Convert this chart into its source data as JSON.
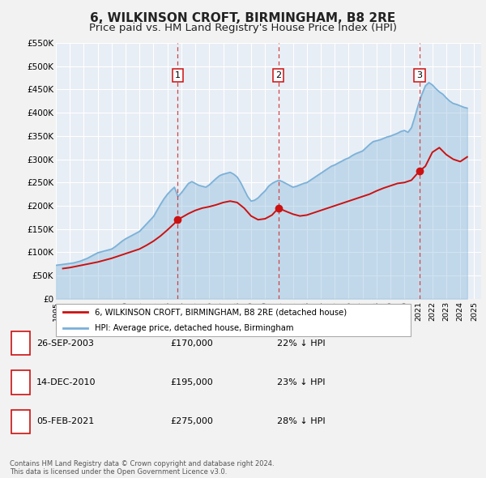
{
  "title": "6, WILKINSON CROFT, BIRMINGHAM, B8 2RE",
  "subtitle": "Price paid vs. HM Land Registry's House Price Index (HPI)",
  "title_fontsize": 11,
  "subtitle_fontsize": 9.5,
  "ylim": [
    0,
    550000
  ],
  "yticks": [
    0,
    50000,
    100000,
    150000,
    200000,
    250000,
    300000,
    350000,
    400000,
    450000,
    500000,
    550000
  ],
  "ytick_labels": [
    "£0",
    "£50K",
    "£100K",
    "£150K",
    "£200K",
    "£250K",
    "£300K",
    "£350K",
    "£400K",
    "£450K",
    "£500K",
    "£550K"
  ],
  "xlim_start": 1995.0,
  "xlim_end": 2025.5,
  "background_color": "#f2f2f2",
  "plot_bg_color": "#e8eef5",
  "grid_color": "#ffffff",
  "hpi_color": "#7ab0d8",
  "hpi_fill_alpha": 0.35,
  "price_color": "#cc1111",
  "sale_dot_color": "#cc1111",
  "vline_color": "#cc3333",
  "sale_label_border": "#cc1111",
  "purchases": [
    {
      "num": 1,
      "date_x": 2003.74,
      "price": 170000,
      "label": "1"
    },
    {
      "num": 2,
      "date_x": 2010.96,
      "price": 195000,
      "label": "2"
    },
    {
      "num": 3,
      "date_x": 2021.09,
      "price": 275000,
      "label": "3"
    }
  ],
  "legend_price_label": "6, WILKINSON CROFT, BIRMINGHAM, B8 2RE (detached house)",
  "legend_hpi_label": "HPI: Average price, detached house, Birmingham",
  "table_rows": [
    {
      "num": "1",
      "date": "26-SEP-2003",
      "price": "£170,000",
      "pct": "22% ↓ HPI"
    },
    {
      "num": "2",
      "date": "14-DEC-2010",
      "price": "£195,000",
      "pct": "23% ↓ HPI"
    },
    {
      "num": "3",
      "date": "05-FEB-2021",
      "price": "£275,000",
      "pct": "28% ↓ HPI"
    }
  ],
  "footer": "Contains HM Land Registry data © Crown copyright and database right 2024.\nThis data is licensed under the Open Government Licence v3.0.",
  "hpi_data_x": [
    1995.0,
    1995.25,
    1995.5,
    1995.75,
    1996.0,
    1996.25,
    1996.5,
    1996.75,
    1997.0,
    1997.25,
    1997.5,
    1997.75,
    1998.0,
    1998.25,
    1998.5,
    1998.75,
    1999.0,
    1999.25,
    1999.5,
    1999.75,
    2000.0,
    2000.25,
    2000.5,
    2000.75,
    2001.0,
    2001.25,
    2001.5,
    2001.75,
    2002.0,
    2002.25,
    2002.5,
    2002.75,
    2003.0,
    2003.25,
    2003.5,
    2003.75,
    2004.0,
    2004.25,
    2004.5,
    2004.75,
    2005.0,
    2005.25,
    2005.5,
    2005.75,
    2006.0,
    2006.25,
    2006.5,
    2006.75,
    2007.0,
    2007.25,
    2007.5,
    2007.75,
    2008.0,
    2008.25,
    2008.5,
    2008.75,
    2009.0,
    2009.25,
    2009.5,
    2009.75,
    2010.0,
    2010.25,
    2010.5,
    2010.75,
    2011.0,
    2011.25,
    2011.5,
    2011.75,
    2012.0,
    2012.25,
    2012.5,
    2012.75,
    2013.0,
    2013.25,
    2013.5,
    2013.75,
    2014.0,
    2014.25,
    2014.5,
    2014.75,
    2015.0,
    2015.25,
    2015.5,
    2015.75,
    2016.0,
    2016.25,
    2016.5,
    2016.75,
    2017.0,
    2017.25,
    2017.5,
    2017.75,
    2018.0,
    2018.25,
    2018.5,
    2018.75,
    2019.0,
    2019.25,
    2019.5,
    2019.75,
    2020.0,
    2020.25,
    2020.5,
    2020.75,
    2021.0,
    2021.25,
    2021.5,
    2021.75,
    2022.0,
    2022.25,
    2022.5,
    2022.75,
    2023.0,
    2023.25,
    2023.5,
    2023.75,
    2024.0,
    2024.25,
    2024.5
  ],
  "hpi_data_y": [
    72000,
    73000,
    74000,
    75000,
    76000,
    77000,
    79000,
    81000,
    84000,
    87000,
    91000,
    95000,
    99000,
    101000,
    103000,
    105000,
    107000,
    112000,
    118000,
    124000,
    129000,
    133000,
    137000,
    141000,
    145000,
    153000,
    161000,
    169000,
    177000,
    190000,
    203000,
    215000,
    225000,
    233000,
    240000,
    220000,
    228000,
    238000,
    248000,
    252000,
    248000,
    244000,
    242000,
    240000,
    245000,
    252000,
    259000,
    265000,
    268000,
    270000,
    272000,
    268000,
    262000,
    250000,
    235000,
    220000,
    210000,
    212000,
    217000,
    225000,
    232000,
    242000,
    248000,
    252000,
    255000,
    252000,
    248000,
    244000,
    240000,
    242000,
    245000,
    248000,
    250000,
    255000,
    260000,
    265000,
    270000,
    275000,
    280000,
    285000,
    288000,
    292000,
    296000,
    300000,
    303000,
    308000,
    312000,
    315000,
    318000,
    325000,
    332000,
    338000,
    340000,
    342000,
    345000,
    348000,
    350000,
    353000,
    356000,
    360000,
    362000,
    358000,
    368000,
    392000,
    418000,
    440000,
    458000,
    465000,
    460000,
    452000,
    445000,
    440000,
    432000,
    425000,
    420000,
    418000,
    415000,
    412000,
    410000
  ],
  "price_data_x": [
    1995.5,
    1996.0,
    1996.5,
    1997.0,
    1997.5,
    1998.0,
    1998.5,
    1999.0,
    1999.5,
    2000.0,
    2000.5,
    2001.0,
    2001.5,
    2002.0,
    2002.5,
    2003.0,
    2003.5,
    2003.74,
    2004.5,
    2005.0,
    2005.5,
    2006.0,
    2006.5,
    2007.0,
    2007.5,
    2008.0,
    2008.5,
    2009.0,
    2009.5,
    2010.0,
    2010.5,
    2010.96,
    2011.5,
    2012.0,
    2012.5,
    2013.0,
    2013.5,
    2014.0,
    2014.5,
    2015.0,
    2015.5,
    2016.0,
    2016.5,
    2017.0,
    2017.5,
    2018.0,
    2018.5,
    2019.0,
    2019.5,
    2020.0,
    2020.5,
    2021.09,
    2021.5,
    2022.0,
    2022.5,
    2023.0,
    2023.5,
    2024.0,
    2024.5
  ],
  "price_data_y": [
    65000,
    67000,
    70000,
    73000,
    76000,
    79000,
    83000,
    87000,
    92000,
    97000,
    102000,
    107000,
    115000,
    124000,
    135000,
    148000,
    162000,
    170000,
    183000,
    190000,
    195000,
    198000,
    202000,
    207000,
    210000,
    207000,
    195000,
    178000,
    170000,
    172000,
    180000,
    195000,
    188000,
    182000,
    178000,
    180000,
    185000,
    190000,
    195000,
    200000,
    205000,
    210000,
    215000,
    220000,
    225000,
    232000,
    238000,
    243000,
    248000,
    250000,
    255000,
    275000,
    285000,
    315000,
    325000,
    310000,
    300000,
    295000,
    305000
  ]
}
